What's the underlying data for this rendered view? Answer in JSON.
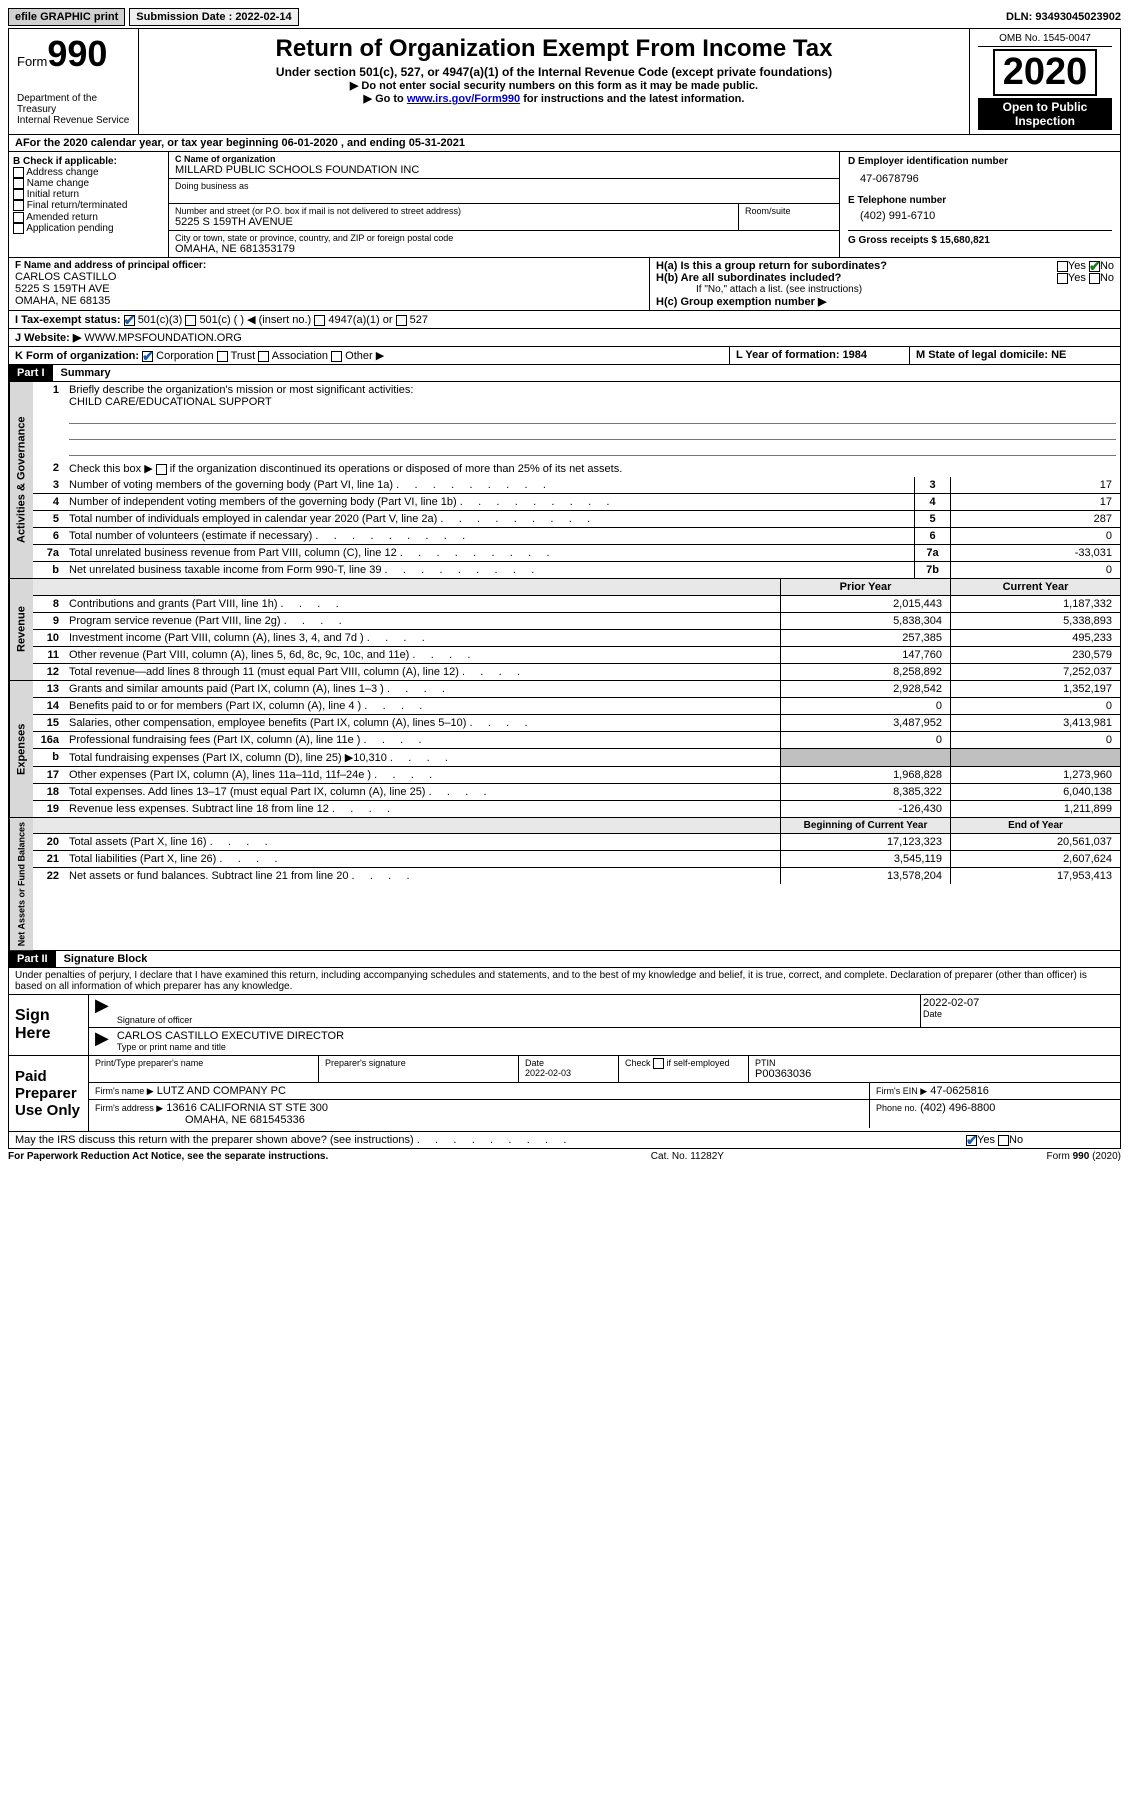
{
  "topbar": {
    "efile": "efile GRAPHIC print",
    "submission_label": "Submission Date : 2022-02-14",
    "dln": "DLN: 93493045023902"
  },
  "header": {
    "form_word": "Form",
    "form_no": "990",
    "dept1": "Department of the Treasury",
    "dept2": "Internal Revenue Service",
    "title": "Return of Organization Exempt From Income Tax",
    "subtitle": "Under section 501(c), 527, or 4947(a)(1) of the Internal Revenue Code (except private foundations)",
    "note1": "▶ Do not enter social security numbers on this form as it may be made public.",
    "note2_pre": "▶ Go to ",
    "note2_link": "www.irs.gov/Form990",
    "note2_post": " for instructions and the latest information.",
    "omb": "OMB No. 1545-0047",
    "year": "2020",
    "open1": "Open to Public",
    "open2": "Inspection"
  },
  "A": {
    "text": "For the 2020 calendar year, or tax year beginning 06-01-2020    , and ending 05-31-2021"
  },
  "B": {
    "label": "B Check if applicable:",
    "items": [
      "Address change",
      "Name change",
      "Initial return",
      "Final return/terminated",
      "Amended return",
      "Application pending"
    ]
  },
  "C": {
    "name_label": "C Name of organization",
    "name": "MILLARD PUBLIC SCHOOLS FOUNDATION INC",
    "dba_label": "Doing business as",
    "street_label": "Number and street (or P.O. box if mail is not delivered to street address)",
    "room_label": "Room/suite",
    "street": "5225 S 159TH AVENUE",
    "city_label": "City or town, state or province, country, and ZIP or foreign postal code",
    "city": "OMAHA, NE  681353179"
  },
  "D": {
    "label": "D Employer identification number",
    "value": "47-0678796"
  },
  "E": {
    "label": "E Telephone number",
    "value": "(402) 991-6710"
  },
  "G": {
    "label": "G Gross receipts $ 15,680,821"
  },
  "F": {
    "label": "F  Name and address of principal officer:",
    "name": "CARLOS CASTILLO",
    "addr1": "5225 S 159TH AVE",
    "addr2": "OMAHA, NE  68135"
  },
  "H": {
    "ha": "H(a)  Is this a group return for subordinates?",
    "yes": "Yes",
    "no": "No",
    "hb": "H(b)  Are all subordinates included?",
    "hb_note": "If \"No,\" attach a list. (see instructions)",
    "hc": "H(c)  Group exemption number ▶"
  },
  "I": {
    "label": "I    Tax-exempt status:",
    "o1": "501(c)(3)",
    "o2": "501(c) (   ) ◀ (insert no.)",
    "o3": "4947(a)(1) or",
    "o4": "527"
  },
  "J": {
    "label": "J    Website: ▶",
    "value": "WWW.MPSFOUNDATION.ORG"
  },
  "K": {
    "label": "K Form of organization:",
    "corp": "Corporation",
    "trust": "Trust",
    "assoc": "Association",
    "other": "Other ▶"
  },
  "L": {
    "label": "L Year of formation: 1984"
  },
  "M": {
    "label": "M State of legal domicile: NE"
  },
  "partI": {
    "header": "Part I",
    "title": "Summary",
    "q1": "Briefly describe the organization's mission or most significant activities:",
    "q1v": "CHILD CARE/EDUCATIONAL SUPPORT",
    "q2": "Check this box ▶         if the organization discontinued its operations or disposed of more than 25% of its net assets.",
    "rows_gov": [
      {
        "n": "3",
        "d": "Number of voting members of the governing body (Part VI, line 1a)",
        "box": "3",
        "v": "17"
      },
      {
        "n": "4",
        "d": "Number of independent voting members of the governing body (Part VI, line 1b)",
        "box": "4",
        "v": "17"
      },
      {
        "n": "5",
        "d": "Total number of individuals employed in calendar year 2020 (Part V, line 2a)",
        "box": "5",
        "v": "287"
      },
      {
        "n": "6",
        "d": "Total number of volunteers (estimate if necessary)",
        "box": "6",
        "v": "0"
      },
      {
        "n": "7a",
        "d": "Total unrelated business revenue from Part VIII, column (C), line 12",
        "box": "7a",
        "v": "-33,031"
      },
      {
        "n": "b",
        "d": "Net unrelated business taxable income from Form 990-T, line 39",
        "box": "7b",
        "v": "0"
      }
    ],
    "py": "Prior Year",
    "cy": "Current Year",
    "rows_rev": [
      {
        "n": "8",
        "d": "Contributions and grants (Part VIII, line 1h)",
        "py": "2,015,443",
        "cy": "1,187,332"
      },
      {
        "n": "9",
        "d": "Program service revenue (Part VIII, line 2g)",
        "py": "5,838,304",
        "cy": "5,338,893"
      },
      {
        "n": "10",
        "d": "Investment income (Part VIII, column (A), lines 3, 4, and 7d )",
        "py": "257,385",
        "cy": "495,233"
      },
      {
        "n": "11",
        "d": "Other revenue (Part VIII, column (A), lines 5, 6d, 8c, 9c, 10c, and 11e)",
        "py": "147,760",
        "cy": "230,579"
      },
      {
        "n": "12",
        "d": "Total revenue—add lines 8 through 11 (must equal Part VIII, column (A), line 12)",
        "py": "8,258,892",
        "cy": "7,252,037"
      }
    ],
    "rows_exp": [
      {
        "n": "13",
        "d": "Grants and similar amounts paid (Part IX, column (A), lines 1–3 )",
        "py": "2,928,542",
        "cy": "1,352,197"
      },
      {
        "n": "14",
        "d": "Benefits paid to or for members (Part IX, column (A), line 4 )",
        "py": "0",
        "cy": "0"
      },
      {
        "n": "15",
        "d": "Salaries, other compensation, employee benefits (Part IX, column (A), lines 5–10)",
        "py": "3,487,952",
        "cy": "3,413,981"
      },
      {
        "n": "16a",
        "d": "Professional fundraising fees (Part IX, column (A), line 11e )",
        "py": "0",
        "cy": "0"
      },
      {
        "n": "b",
        "d": "Total fundraising expenses (Part IX, column (D), line 25) ▶10,310",
        "py": "",
        "cy": "",
        "shaded": true
      },
      {
        "n": "17",
        "d": "Other expenses (Part IX, column (A), lines 11a–11d, 11f–24e )",
        "py": "1,968,828",
        "cy": "1,273,960"
      },
      {
        "n": "18",
        "d": "Total expenses. Add lines 13–17 (must equal Part IX, column (A), line 25)",
        "py": "8,385,322",
        "cy": "6,040,138"
      },
      {
        "n": "19",
        "d": "Revenue less expenses. Subtract line 18 from line 12",
        "py": "-126,430",
        "cy": "1,211,899"
      }
    ],
    "by": "Beginning of Current Year",
    "ey": "End of Year",
    "rows_na": [
      {
        "n": "20",
        "d": "Total assets (Part X, line 16)",
        "py": "17,123,323",
        "cy": "20,561,037"
      },
      {
        "n": "21",
        "d": "Total liabilities (Part X, line 26)",
        "py": "3,545,119",
        "cy": "2,607,624"
      },
      {
        "n": "22",
        "d": "Net assets or fund balances. Subtract line 21 from line 20",
        "py": "13,578,204",
        "cy": "17,953,413"
      }
    ],
    "vtab_gov": "Activities & Governance",
    "vtab_rev": "Revenue",
    "vtab_exp": "Expenses",
    "vtab_na": "Net Assets or Fund Balances"
  },
  "partII": {
    "header": "Part II",
    "title": "Signature Block",
    "perjury": "Under penalties of perjury, I declare that I have examined this return, including accompanying schedules and statements, and to the best of my knowledge and belief, it is true, correct, and complete. Declaration of preparer (other than officer) is based on all information of which preparer has any knowledge.",
    "sign_here": "Sign Here",
    "sig_officer": "Signature of officer",
    "sig_date": "2022-02-07",
    "sig_date_lbl": "Date",
    "officer_name": "CARLOS CASTILLO  EXECUTIVE DIRECTOR",
    "officer_name_lbl": "Type or print name and title",
    "paid": "Paid Preparer Use Only",
    "pp_name_lbl": "Print/Type preparer's name",
    "pp_sig_lbl": "Preparer's signature",
    "pp_date_lbl": "Date",
    "pp_date": "2022-02-03",
    "pp_check": "Check         if self-employed",
    "pp_ptin_lbl": "PTIN",
    "pp_ptin": "P00363036",
    "firm_name_lbl": "Firm's name    ▶",
    "firm_name": "LUTZ AND COMPANY PC",
    "firm_ein_lbl": "Firm's EIN ▶",
    "firm_ein": "47-0625816",
    "firm_addr_lbl": "Firm's address ▶",
    "firm_addr1": "13616 CALIFORNIA ST STE 300",
    "firm_addr2": "OMAHA, NE  681545336",
    "firm_phone_lbl": "Phone no.",
    "firm_phone": "(402) 496-8800",
    "discuss": "May the IRS discuss this return with the preparer shown above? (see instructions)",
    "yes": "Yes",
    "no": "No"
  },
  "footer": {
    "left": "For Paperwork Reduction Act Notice, see the separate instructions.",
    "mid": "Cat. No. 11282Y",
    "right": "Form 990 (2020)"
  },
  "colors": {
    "link": "#0000cc",
    "check": "#1a7a1a"
  }
}
